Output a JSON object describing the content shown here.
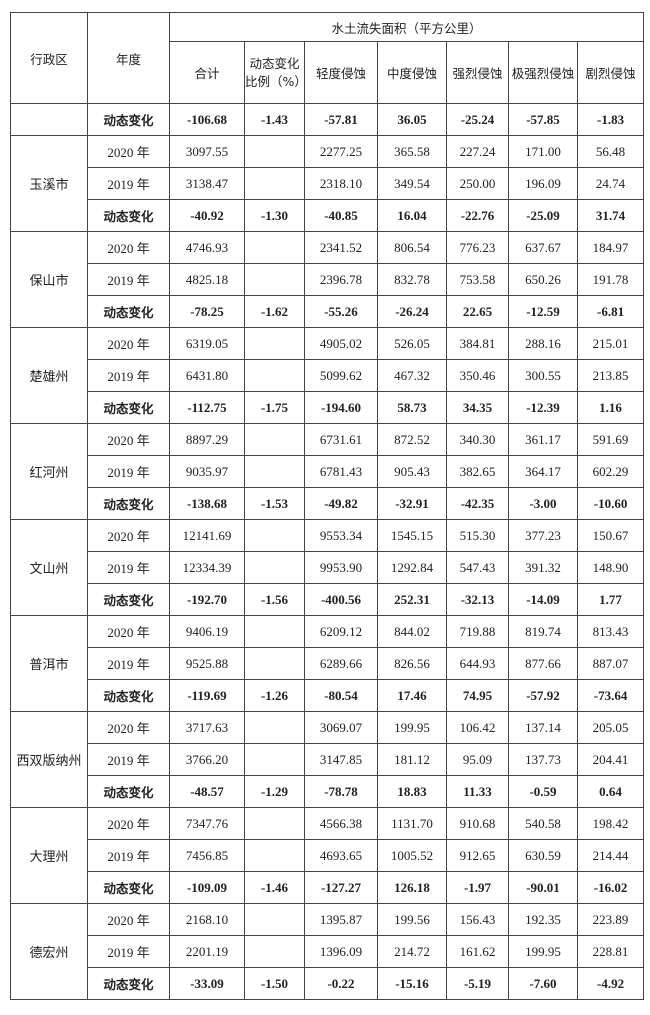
{
  "header": {
    "region": "行政区",
    "year": "年度",
    "group": "水土流失面积（平方公里）",
    "cols": [
      "合计",
      "动态变化比例（%）",
      "轻度侵蚀",
      "中度侵蚀",
      "强烈侵蚀",
      "极强烈侵蚀",
      "剧烈侵蚀"
    ]
  },
  "summary": {
    "label": "动态变化",
    "values": [
      "-106.68",
      "-1.43",
      "-57.81",
      "36.05",
      "-25.24",
      "-57.85",
      "-1.83"
    ]
  },
  "regions": [
    {
      "name": "玉溪市",
      "rows": [
        {
          "label": "2020 年",
          "values": [
            "3097.55",
            "",
            "2277.25",
            "365.58",
            "227.24",
            "171.00",
            "56.48"
          ]
        },
        {
          "label": "2019 年",
          "values": [
            "3138.47",
            "",
            "2318.10",
            "349.54",
            "250.00",
            "196.09",
            "24.74"
          ]
        },
        {
          "label": "动态变化",
          "values": [
            "-40.92",
            "-1.30",
            "-40.85",
            "16.04",
            "-22.76",
            "-25.09",
            "31.74"
          ]
        }
      ]
    },
    {
      "name": "保山市",
      "rows": [
        {
          "label": "2020 年",
          "values": [
            "4746.93",
            "",
            "2341.52",
            "806.54",
            "776.23",
            "637.67",
            "184.97"
          ]
        },
        {
          "label": "2019 年",
          "values": [
            "4825.18",
            "",
            "2396.78",
            "832.78",
            "753.58",
            "650.26",
            "191.78"
          ]
        },
        {
          "label": "动态变化",
          "values": [
            "-78.25",
            "-1.62",
            "-55.26",
            "-26.24",
            "22.65",
            "-12.59",
            "-6.81"
          ]
        }
      ]
    },
    {
      "name": "楚雄州",
      "rows": [
        {
          "label": "2020 年",
          "values": [
            "6319.05",
            "",
            "4905.02",
            "526.05",
            "384.81",
            "288.16",
            "215.01"
          ]
        },
        {
          "label": "2019 年",
          "values": [
            "6431.80",
            "",
            "5099.62",
            "467.32",
            "350.46",
            "300.55",
            "213.85"
          ]
        },
        {
          "label": "动态变化",
          "values": [
            "-112.75",
            "-1.75",
            "-194.60",
            "58.73",
            "34.35",
            "-12.39",
            "1.16"
          ]
        }
      ]
    },
    {
      "name": "红河州",
      "rows": [
        {
          "label": "2020 年",
          "values": [
            "8897.29",
            "",
            "6731.61",
            "872.52",
            "340.30",
            "361.17",
            "591.69"
          ]
        },
        {
          "label": "2019 年",
          "values": [
            "9035.97",
            "",
            "6781.43",
            "905.43",
            "382.65",
            "364.17",
            "602.29"
          ]
        },
        {
          "label": "动态变化",
          "values": [
            "-138.68",
            "-1.53",
            "-49.82",
            "-32.91",
            "-42.35",
            "-3.00",
            "-10.60"
          ]
        }
      ]
    },
    {
      "name": "文山州",
      "rows": [
        {
          "label": "2020 年",
          "values": [
            "12141.69",
            "",
            "9553.34",
            "1545.15",
            "515.30",
            "377.23",
            "150.67"
          ]
        },
        {
          "label": "2019 年",
          "values": [
            "12334.39",
            "",
            "9953.90",
            "1292.84",
            "547.43",
            "391.32",
            "148.90"
          ]
        },
        {
          "label": "动态变化",
          "values": [
            "-192.70",
            "-1.56",
            "-400.56",
            "252.31",
            "-32.13",
            "-14.09",
            "1.77"
          ]
        }
      ]
    },
    {
      "name": "普洱市",
      "rows": [
        {
          "label": "2020 年",
          "values": [
            "9406.19",
            "",
            "6209.12",
            "844.02",
            "719.88",
            "819.74",
            "813.43"
          ]
        },
        {
          "label": "2019 年",
          "values": [
            "9525.88",
            "",
            "6289.66",
            "826.56",
            "644.93",
            "877.66",
            "887.07"
          ]
        },
        {
          "label": "动态变化",
          "values": [
            "-119.69",
            "-1.26",
            "-80.54",
            "17.46",
            "74.95",
            "-57.92",
            "-73.64"
          ]
        }
      ]
    },
    {
      "name": "西双版纳州",
      "rows": [
        {
          "label": "2020 年",
          "values": [
            "3717.63",
            "",
            "3069.07",
            "199.95",
            "106.42",
            "137.14",
            "205.05"
          ]
        },
        {
          "label": "2019 年",
          "values": [
            "3766.20",
            "",
            "3147.85",
            "181.12",
            "95.09",
            "137.73",
            "204.41"
          ]
        },
        {
          "label": "动态变化",
          "values": [
            "-48.57",
            "-1.29",
            "-78.78",
            "18.83",
            "11.33",
            "-0.59",
            "0.64"
          ]
        }
      ]
    },
    {
      "name": "大理州",
      "rows": [
        {
          "label": "2020 年",
          "values": [
            "7347.76",
            "",
            "4566.38",
            "1131.70",
            "910.68",
            "540.58",
            "198.42"
          ]
        },
        {
          "label": "2019 年",
          "values": [
            "7456.85",
            "",
            "4693.65",
            "1005.52",
            "912.65",
            "630.59",
            "214.44"
          ]
        },
        {
          "label": "动态变化",
          "values": [
            "-109.09",
            "-1.46",
            "-127.27",
            "126.18",
            "-1.97",
            "-90.01",
            "-16.02"
          ]
        }
      ]
    },
    {
      "name": "德宏州",
      "rows": [
        {
          "label": "2020 年",
          "values": [
            "2168.10",
            "",
            "1395.87",
            "199.56",
            "156.43",
            "192.35",
            "223.89"
          ]
        },
        {
          "label": "2019 年",
          "values": [
            "2201.19",
            "",
            "1396.09",
            "214.72",
            "161.62",
            "199.95",
            "228.81"
          ]
        },
        {
          "label": "动态变化",
          "values": [
            "-33.09",
            "-1.50",
            "-0.22",
            "-15.16",
            "-5.19",
            "-7.60",
            "-4.92"
          ]
        }
      ]
    }
  ]
}
